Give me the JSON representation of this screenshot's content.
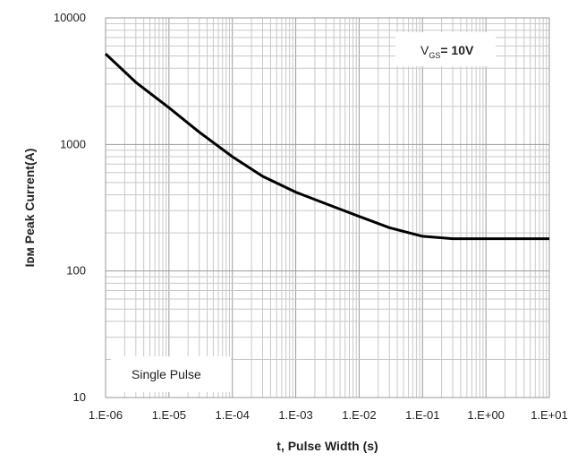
{
  "chart_data": {
    "type": "line",
    "xlabel": "t, Pulse Width (s)",
    "ylabel": "Iᴅᴍ Peak Current(A)",
    "x_scale": "log",
    "y_scale": "log",
    "xlim": [
      1e-06,
      10
    ],
    "ylim": [
      10,
      10000
    ],
    "x_tick_labels": [
      "1.E-06",
      "1.E-05",
      "1.E-04",
      "1.E-03",
      "1.E-02",
      "1.E-01",
      "1.E+00",
      "1.E+01"
    ],
    "y_tick_labels": [
      "10",
      "100",
      "1000",
      "10000"
    ],
    "grid": true,
    "series": [
      {
        "color": "#000000",
        "points": [
          [
            1e-06,
            5200
          ],
          [
            3e-06,
            3100
          ],
          [
            1e-05,
            1950
          ],
          [
            3e-05,
            1250
          ],
          [
            0.0001,
            800
          ],
          [
            0.0003,
            560
          ],
          [
            0.001,
            420
          ],
          [
            0.003,
            340
          ],
          [
            0.01,
            270
          ],
          [
            0.03,
            220
          ],
          [
            0.1,
            188
          ],
          [
            0.3,
            180
          ],
          [
            1,
            180
          ],
          [
            10,
            180
          ]
        ]
      }
    ],
    "annotations": {
      "vgs": {
        "base": "V",
        "sub": "GS",
        "rest": "= 10V"
      },
      "pulse": "Single Pulse"
    }
  }
}
